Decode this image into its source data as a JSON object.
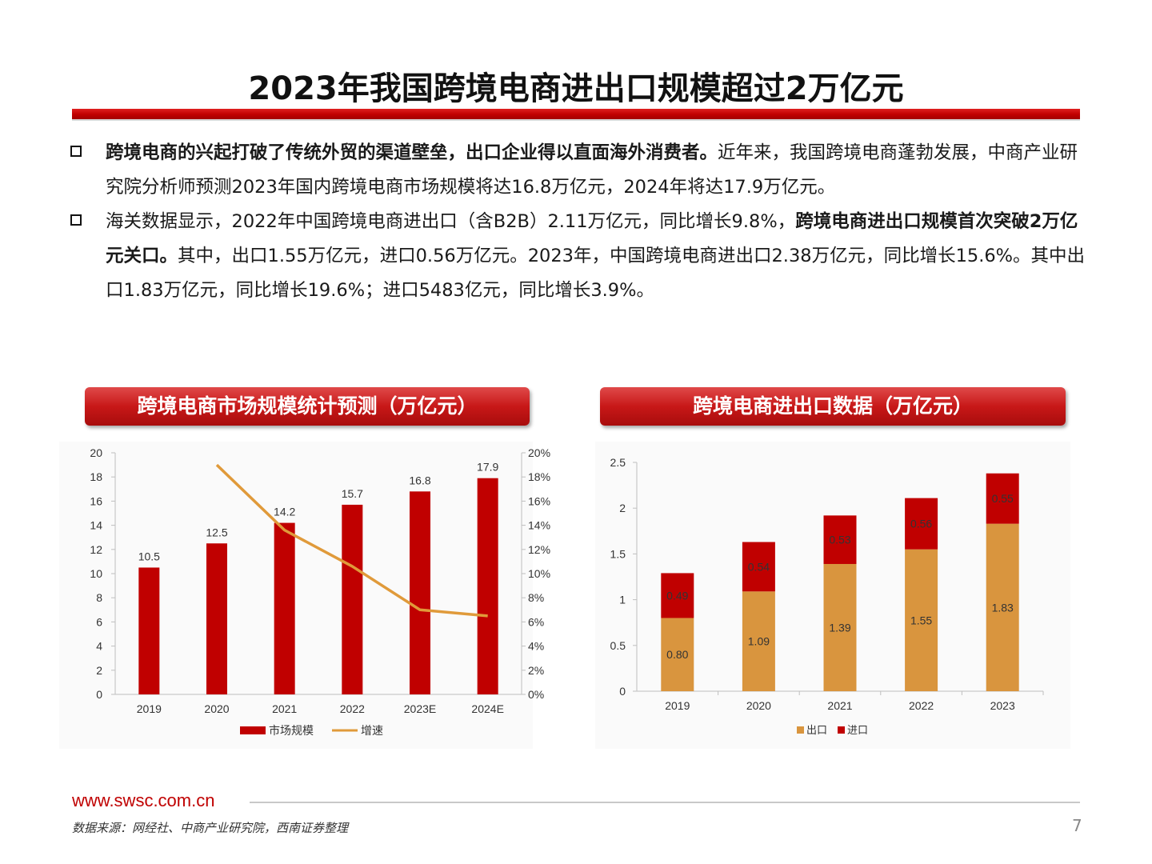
{
  "title": "2023年我国跨境电商进出口规模超过2万亿元",
  "bullets": [
    {
      "bold": "跨境电商的兴起打破了传统外贸的渠道壁垒，出口企业得以直面海外消费者。",
      "normal": "近年来，我国跨境电商蓬勃发展，中商产业研究院分析师预测2023年国内跨境电商市场规模将达16.8万亿元，2024年将达17.9万亿元。"
    },
    {
      "lead": "海关数据显示，2022年中国跨境电商进出口（含B2B）2.11万亿元，同比增长9.8%，",
      "bold": "跨境电商进出口规模首次突破2万亿元关口。",
      "tail": "其中，出口1.55万亿元，进口0.56万亿元。2023年，中国跨境电商进出口2.38万亿元，同比增长15.6%。其中出口1.83万亿元，同比增长19.6%；进口5483亿元，同比增长3.9%。"
    }
  ],
  "banners": {
    "left": "跨境电商市场规模统计预测（万亿元）",
    "right": "跨境电商进出口数据（万亿元）"
  },
  "chart_data": [
    {
      "type": "bar",
      "title": "跨境电商市场规模统计预测（万亿元）",
      "categories": [
        "2019",
        "2020",
        "2021",
        "2022",
        "2023E",
        "2024E"
      ],
      "series": [
        {
          "name": "市场规模",
          "type": "bar",
          "values": [
            10.5,
            12.5,
            14.2,
            15.7,
            16.8,
            17.9
          ],
          "labels": [
            "10.5",
            "12.5",
            "14.2",
            "15.7",
            "16.8",
            "17.9"
          ],
          "color": "#c00000"
        },
        {
          "name": "增速",
          "type": "line",
          "axis": "right",
          "values": [
            null,
            19.0,
            13.6,
            10.6,
            7.0,
            6.5
          ],
          "color": "#e09a3a"
        }
      ],
      "ylim": [
        0,
        20
      ],
      "yticks": [
        "0",
        "2",
        "4",
        "6",
        "8",
        "10",
        "12",
        "14",
        "16",
        "18",
        "20"
      ],
      "y2lim": [
        0,
        20
      ],
      "y2ticks": [
        "0%",
        "2%",
        "4%",
        "6%",
        "8%",
        "10%",
        "12%",
        "14%",
        "16%",
        "18%",
        "20%"
      ],
      "legend": "bottom"
    },
    {
      "type": "bar",
      "stacked": true,
      "title": "跨境电商进出口数据（万亿元）",
      "categories": [
        "2019",
        "2020",
        "2021",
        "2022",
        "2023"
      ],
      "series": [
        {
          "name": "出口",
          "values": [
            0.8,
            1.09,
            1.39,
            1.55,
            1.83
          ],
          "labels": [
            "0.80",
            "1.09",
            "1.39",
            "1.55",
            "1.83"
          ],
          "color": "#d9953e"
        },
        {
          "name": "进口",
          "values": [
            0.49,
            0.54,
            0.53,
            0.56,
            0.55
          ],
          "labels": [
            "0.49",
            "0.54",
            "0.53",
            "0.56",
            "0.55"
          ],
          "color": "#c00000"
        }
      ],
      "ylim": [
        0,
        2.5
      ],
      "yticks": [
        "0",
        "0.5",
        "1",
        "1.5",
        "2",
        "2.5"
      ],
      "legend": "bottom"
    }
  ],
  "footer": {
    "url": "www.swsc.com.cn",
    "source": "数据来源：网经社、中商产业研究院，西南证券整理",
    "page": "7"
  }
}
